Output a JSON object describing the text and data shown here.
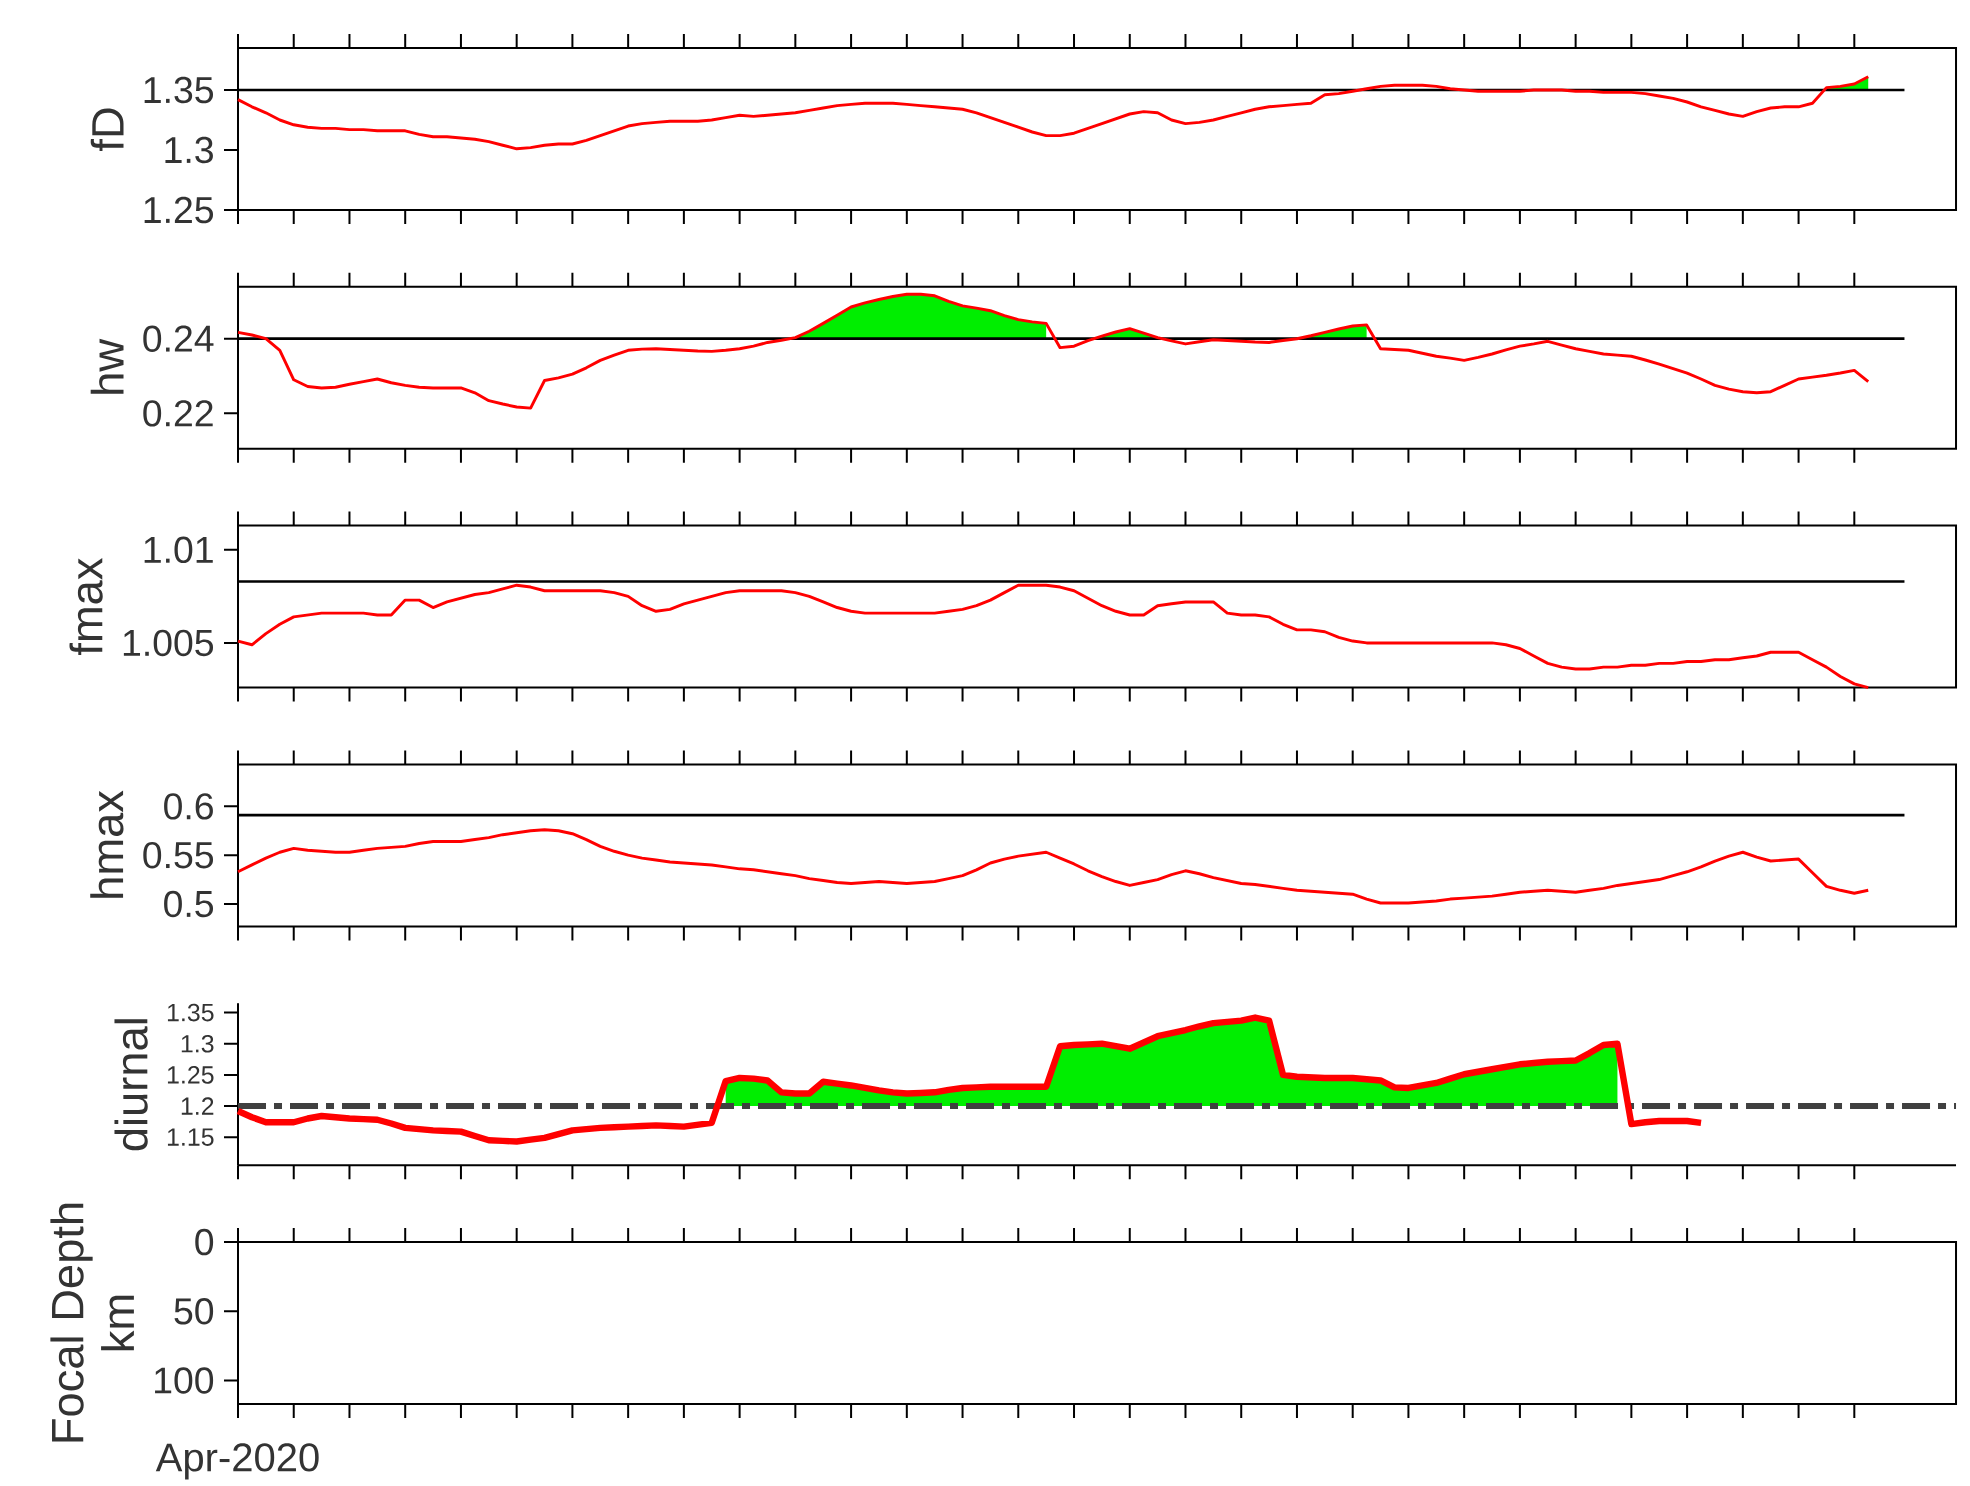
{
  "chart_data": [
    {
      "type": "line",
      "ylabel": "fD",
      "tick_labels": "y",
      "ylim": [
        1.25,
        1.385
      ],
      "yticks": [
        1.25,
        1.3,
        1.35
      ],
      "categories": [
        null,
        null,
        null,
        null,
        null,
        null,
        null,
        null,
        null,
        null,
        null,
        null,
        null,
        null,
        null,
        null,
        null,
        null,
        null,
        null,
        null,
        null,
        null,
        null,
        null,
        null,
        null,
        null,
        null,
        null,
        null,
        null,
        null,
        null,
        null,
        null,
        null,
        null,
        null,
        null,
        null,
        null,
        null,
        null,
        null,
        null,
        null,
        null,
        null,
        null,
        null,
        null,
        null,
        null,
        null,
        null,
        null,
        null,
        null,
        null,
        null,
        null,
        null,
        null,
        null,
        null,
        null,
        null,
        null,
        null,
        null,
        null,
        null,
        null,
        null,
        null,
        null,
        null,
        null,
        null,
        null,
        null,
        null,
        null,
        null,
        null,
        null,
        null,
        null,
        null,
        null,
        null,
        null,
        null,
        null,
        null,
        null,
        null,
        null,
        null,
        null,
        null,
        null,
        null,
        null,
        null,
        null,
        null,
        null,
        null,
        null,
        null,
        null,
        null,
        null,
        null,
        null,
        null,
        null,
        null
      ],
      "ref_lines": [
        {
          "axis": "y",
          "value": 1.35,
          "color": "#000000"
        }
      ],
      "series": [
        {
          "color": "#ff0000",
          "values": [
            1.342,
            1.336,
            1.331,
            1.325,
            1.321,
            1.319,
            1.318,
            1.318,
            1.317,
            1.317,
            1.316,
            1.316,
            1.316,
            1.313,
            1.311,
            1.311,
            1.31,
            1.309,
            1.307,
            1.304,
            1.301,
            1.302,
            1.304,
            1.305,
            1.305,
            1.308,
            1.312,
            1.316,
            1.32,
            1.322,
            1.323,
            1.324,
            1.324,
            1.324,
            1.325,
            1.327,
            1.329,
            1.328,
            1.329,
            1.33,
            1.331,
            1.333,
            1.335,
            1.337,
            1.338,
            1.339,
            1.339,
            1.339,
            1.338,
            1.337,
            1.336,
            1.335,
            1.334,
            1.331,
            1.327,
            1.323,
            1.319,
            1.315,
            1.312,
            1.312,
            1.314,
            1.318,
            1.322,
            1.326,
            1.33,
            1.332,
            1.331,
            1.325,
            1.322,
            1.323,
            1.325,
            1.328,
            1.331,
            1.334,
            1.336,
            1.337,
            1.338,
            1.339,
            1.346,
            1.347,
            1.349,
            1.351,
            1.353,
            1.354,
            1.354,
            1.354,
            1.353,
            1.351,
            1.35,
            1.349,
            1.349,
            1.349,
            1.349,
            1.35,
            1.35,
            1.35,
            1.349,
            1.349,
            1.348,
            1.348,
            1.348,
            1.347,
            1.345,
            1.343,
            1.34,
            1.336,
            1.333,
            1.33,
            1.328,
            1.332,
            1.335,
            1.336,
            1.336,
            1.339,
            1.352,
            1.353,
            1.355,
            1.361,
            null,
            null
          ]
        },
        {
          "type": "area",
          "color": "#00ee00",
          "values": [
            null,
            null,
            null,
            null,
            null,
            null,
            null,
            null,
            null,
            null,
            null,
            null,
            null,
            null,
            null,
            null,
            null,
            null,
            null,
            null,
            null,
            null,
            null,
            null,
            null,
            null,
            null,
            null,
            null,
            null,
            null,
            null,
            null,
            null,
            null,
            null,
            null,
            null,
            null,
            null,
            null,
            null,
            null,
            null,
            null,
            null,
            null,
            null,
            null,
            null,
            null,
            null,
            null,
            null,
            null,
            null,
            null,
            null,
            null,
            null,
            null,
            null,
            null,
            null,
            null,
            null,
            null,
            null,
            null,
            null,
            null,
            null,
            null,
            null,
            null,
            null,
            null,
            null,
            null,
            null,
            null,
            null,
            null,
            null,
            null,
            null,
            null,
            null,
            null,
            null,
            null,
            null,
            null,
            null,
            null,
            null,
            null,
            null,
            null,
            null,
            null,
            null,
            null,
            null,
            null,
            null,
            null,
            null,
            null,
            null,
            null,
            null,
            null,
            null,
            1.352,
            1.353,
            1.355,
            1.361,
            null,
            null
          ]
        }
      ]
    },
    {
      "type": "line",
      "ylabel": "hw",
      "tick_labels": "y",
      "ylim": [
        0.2105,
        0.2539
      ],
      "yticks": [
        0.22,
        0.24
      ],
      "categories": [
        null,
        null,
        null,
        null,
        null,
        null,
        null,
        null,
        null,
        null,
        null,
        null,
        null,
        null,
        null,
        null,
        null,
        null,
        null,
        null,
        null,
        null,
        null,
        null,
        null,
        null,
        null,
        null,
        null,
        null,
        null,
        null,
        null,
        null,
        null,
        null,
        null,
        null,
        null,
        null,
        null,
        null,
        null,
        null,
        null,
        null,
        null,
        null,
        null,
        null,
        null,
        null,
        null,
        null,
        null,
        null,
        null,
        null,
        null,
        null,
        null,
        null,
        null,
        null,
        null,
        null,
        null,
        null,
        null,
        null,
        null,
        null,
        null,
        null,
        null,
        null,
        null,
        null,
        null,
        null,
        null,
        null,
        null,
        null,
        null,
        null,
        null,
        null,
        null,
        null,
        null,
        null,
        null,
        null,
        null,
        null,
        null,
        null,
        null,
        null,
        null,
        null,
        null,
        null,
        null,
        null,
        null,
        null,
        null,
        null,
        null,
        null,
        null,
        null,
        null,
        null,
        null,
        null,
        null,
        null
      ],
      "ref_lines": [
        {
          "axis": "y",
          "value": 0.24,
          "color": "#000000"
        }
      ],
      "series": [
        {
          "color": "#ff0000",
          "values": [
            0.2417,
            0.241,
            0.24,
            0.2369,
            0.229,
            0.2272,
            0.2268,
            0.227,
            0.2278,
            0.2285,
            0.2292,
            0.2282,
            0.2275,
            0.227,
            0.2268,
            0.2268,
            0.2268,
            0.2255,
            0.2234,
            0.2225,
            0.2217,
            0.2214,
            0.2288,
            0.2295,
            0.2305,
            0.2322,
            0.2342,
            0.2356,
            0.2369,
            0.2372,
            0.2373,
            0.2371,
            0.2369,
            0.2367,
            0.2366,
            0.2369,
            0.2373,
            0.238,
            0.239,
            0.2396,
            0.2403,
            0.242,
            0.2441,
            0.2463,
            0.2485,
            0.2496,
            0.2505,
            0.2513,
            0.2519,
            0.2519,
            0.2515,
            0.25,
            0.2488,
            0.2482,
            0.2475,
            0.2462,
            0.2451,
            0.2445,
            0.2441,
            0.2376,
            0.238,
            0.2395,
            0.2407,
            0.2418,
            0.2427,
            0.2415,
            0.2403,
            0.2394,
            0.2386,
            0.2392,
            0.2397,
            0.2395,
            0.2393,
            0.2391,
            0.239,
            0.2395,
            0.24,
            0.2408,
            0.2417,
            0.2426,
            0.2434,
            0.2437,
            0.2373,
            0.2371,
            0.2369,
            0.2361,
            0.2353,
            0.2348,
            0.2342,
            0.235,
            0.2359,
            0.237,
            0.238,
            0.2386,
            0.2393,
            0.2383,
            0.2373,
            0.2366,
            0.2359,
            0.2356,
            0.2353,
            0.2343,
            0.2332,
            0.232,
            0.2308,
            0.2292,
            0.2275,
            0.2265,
            0.2258,
            0.2255,
            0.2258,
            0.2275,
            0.2292,
            0.2297,
            0.2302,
            0.2308,
            0.2315,
            0.2285,
            null,
            null
          ]
        },
        {
          "type": "area",
          "color": "#00ee00",
          "values": [
            null,
            null,
            null,
            null,
            null,
            null,
            null,
            null,
            null,
            null,
            null,
            null,
            null,
            null,
            null,
            null,
            null,
            null,
            null,
            null,
            null,
            null,
            null,
            null,
            null,
            null,
            null,
            null,
            null,
            null,
            null,
            null,
            null,
            null,
            null,
            null,
            null,
            null,
            null,
            null,
            0.2403,
            0.242,
            0.2441,
            0.2463,
            0.2485,
            0.2496,
            0.2505,
            0.2513,
            0.2519,
            0.2519,
            0.2515,
            0.25,
            0.2488,
            0.2482,
            0.2475,
            0.2462,
            0.2451,
            0.2445,
            0.2441,
            null,
            null,
            null,
            0.2407,
            0.2418,
            0.2427,
            0.2415,
            0.2403,
            null,
            null,
            null,
            null,
            null,
            null,
            null,
            null,
            null,
            0.24,
            0.2408,
            0.2417,
            0.2426,
            0.2434,
            0.2437,
            null,
            null,
            null,
            null,
            null,
            null,
            null,
            null,
            null,
            null,
            null,
            null,
            null,
            null,
            null,
            null,
            null,
            null,
            null,
            null,
            null,
            null,
            null,
            null,
            null,
            null,
            null,
            null,
            null,
            null,
            null,
            null,
            null,
            null,
            null,
            null,
            null,
            null
          ]
        }
      ]
    },
    {
      "type": "line",
      "ylabel": "fmax",
      "tick_labels": "y",
      "ylim": [
        1.0026,
        1.0113
      ],
      "yticks": [
        1.005,
        1.01
      ],
      "categories": [
        null,
        null,
        null,
        null,
        null,
        null,
        null,
        null,
        null,
        null,
        null,
        null,
        null,
        null,
        null,
        null,
        null,
        null,
        null,
        null,
        null,
        null,
        null,
        null,
        null,
        null,
        null,
        null,
        null,
        null,
        null,
        null,
        null,
        null,
        null,
        null,
        null,
        null,
        null,
        null,
        null,
        null,
        null,
        null,
        null,
        null,
        null,
        null,
        null,
        null,
        null,
        null,
        null,
        null,
        null,
        null,
        null,
        null,
        null,
        null,
        null,
        null,
        null,
        null,
        null,
        null,
        null,
        null,
        null,
        null,
        null,
        null,
        null,
        null,
        null,
        null,
        null,
        null,
        null,
        null,
        null,
        null,
        null,
        null,
        null,
        null,
        null,
        null,
        null,
        null,
        null,
        null,
        null,
        null,
        null,
        null,
        null,
        null,
        null,
        null,
        null,
        null,
        null,
        null,
        null,
        null,
        null,
        null,
        null,
        null,
        null,
        null,
        null,
        null,
        null,
        null,
        null,
        null,
        null,
        null
      ],
      "ref_lines": [
        {
          "axis": "y",
          "value": 1.0083,
          "color": "#000000"
        }
      ],
      "series": [
        {
          "color": "#ff0000",
          "values": [
            1.0051,
            1.0049,
            1.0055,
            1.006,
            1.0064,
            1.0065,
            1.0066,
            1.0066,
            1.0066,
            1.0066,
            1.0065,
            1.0065,
            1.0073,
            1.0073,
            1.0069,
            1.0072,
            1.0074,
            1.0076,
            1.0077,
            1.0079,
            1.0081,
            1.008,
            1.0078,
            1.0078,
            1.0078,
            1.0078,
            1.0078,
            1.0077,
            1.0075,
            1.007,
            1.0067,
            1.0068,
            1.0071,
            1.0073,
            1.0075,
            1.0077,
            1.0078,
            1.0078,
            1.0078,
            1.0078,
            1.0077,
            1.0075,
            1.0072,
            1.0069,
            1.0067,
            1.0066,
            1.0066,
            1.0066,
            1.0066,
            1.0066,
            1.0066,
            1.0067,
            1.0068,
            1.007,
            1.0073,
            1.0077,
            1.0081,
            1.0081,
            1.0081,
            1.008,
            1.0078,
            1.0074,
            1.007,
            1.0067,
            1.0065,
            1.0065,
            1.007,
            1.0071,
            1.0072,
            1.0072,
            1.0072,
            1.0066,
            1.0065,
            1.0065,
            1.0064,
            1.006,
            1.0057,
            1.0057,
            1.0056,
            1.0053,
            1.0051,
            1.005,
            1.005,
            1.005,
            1.005,
            1.005,
            1.005,
            1.005,
            1.005,
            1.005,
            1.005,
            1.0049,
            1.0047,
            1.0043,
            1.0039,
            1.0037,
            1.0036,
            1.0036,
            1.0037,
            1.0037,
            1.0038,
            1.0038,
            1.0039,
            1.0039,
            1.004,
            1.004,
            1.0041,
            1.0041,
            1.0042,
            1.0043,
            1.0045,
            1.0045,
            1.0045,
            1.0041,
            1.0037,
            1.0032,
            1.0028,
            1.0026,
            null,
            null
          ]
        }
      ]
    },
    {
      "type": "line",
      "ylabel": "hmax",
      "tick_labels": "y",
      "ylim": [
        0.477,
        0.643
      ],
      "yticks": [
        0.5,
        0.55,
        0.6
      ],
      "categories": [
        null,
        null,
        null,
        null,
        null,
        null,
        null,
        null,
        null,
        null,
        null,
        null,
        null,
        null,
        null,
        null,
        null,
        null,
        null,
        null,
        null,
        null,
        null,
        null,
        null,
        null,
        null,
        null,
        null,
        null,
        null,
        null,
        null,
        null,
        null,
        null,
        null,
        null,
        null,
        null,
        null,
        null,
        null,
        null,
        null,
        null,
        null,
        null,
        null,
        null,
        null,
        null,
        null,
        null,
        null,
        null,
        null,
        null,
        null,
        null,
        null,
        null,
        null,
        null,
        null,
        null,
        null,
        null,
        null,
        null,
        null,
        null,
        null,
        null,
        null,
        null,
        null,
        null,
        null,
        null,
        null,
        null,
        null,
        null,
        null,
        null,
        null,
        null,
        null,
        null,
        null,
        null,
        null,
        null,
        null,
        null,
        null,
        null,
        null,
        null,
        null,
        null,
        null,
        null,
        null,
        null,
        null,
        null,
        null,
        null,
        null,
        null,
        null,
        null,
        null,
        null,
        null,
        null,
        null,
        null
      ],
      "ref_lines": [
        {
          "axis": "y",
          "value": 0.591,
          "color": "#000000"
        }
      ],
      "series": [
        {
          "color": "#ff0000",
          "values": [
            0.533,
            0.54,
            0.547,
            0.553,
            0.557,
            0.555,
            0.554,
            0.553,
            0.553,
            0.555,
            0.557,
            0.558,
            0.559,
            0.562,
            0.564,
            0.564,
            0.564,
            0.566,
            0.568,
            0.571,
            0.573,
            0.575,
            0.576,
            0.575,
            0.572,
            0.566,
            0.559,
            0.554,
            0.55,
            0.547,
            0.545,
            0.543,
            0.542,
            0.541,
            0.54,
            0.538,
            0.536,
            0.535,
            0.533,
            0.531,
            0.529,
            0.526,
            0.524,
            0.522,
            0.521,
            0.522,
            0.523,
            0.522,
            0.521,
            0.522,
            0.523,
            0.526,
            0.529,
            0.535,
            0.542,
            0.546,
            0.549,
            0.551,
            0.553,
            0.547,
            0.541,
            0.534,
            0.528,
            0.523,
            0.519,
            0.522,
            0.525,
            0.53,
            0.534,
            0.531,
            0.527,
            0.524,
            0.521,
            0.52,
            0.518,
            0.516,
            0.514,
            0.513,
            0.512,
            0.511,
            0.51,
            0.505,
            0.501,
            0.501,
            0.501,
            0.502,
            0.503,
            0.505,
            0.506,
            0.507,
            0.508,
            0.51,
            0.512,
            0.513,
            0.514,
            0.513,
            0.512,
            0.514,
            0.516,
            0.519,
            0.521,
            0.523,
            0.525,
            0.529,
            0.533,
            0.538,
            0.544,
            0.549,
            0.553,
            0.548,
            0.544,
            0.545,
            0.546,
            0.532,
            0.518,
            0.514,
            0.511,
            0.514,
            null,
            null
          ]
        }
      ]
    },
    {
      "type": "line",
      "ylabel": "diurnal",
      "tick_labels": "y",
      "ylim": [
        1.105,
        1.365
      ],
      "yticks": [
        1.15,
        1.2,
        1.25,
        1.3,
        1.35
      ],
      "categories": [
        null,
        null,
        null,
        null,
        null,
        null,
        null,
        null,
        null,
        null,
        null,
        null,
        null,
        null,
        null,
        null,
        null,
        null,
        null,
        null,
        null,
        null,
        null,
        null,
        null,
        null,
        null,
        null,
        null,
        null,
        null,
        null,
        null,
        null,
        null,
        null,
        null,
        null,
        null,
        null,
        null,
        null,
        null,
        null,
        null,
        null,
        null,
        null,
        null,
        null,
        null,
        null,
        null,
        null,
        null,
        null,
        null,
        null,
        null,
        null,
        null,
        null,
        null,
        null,
        null,
        null,
        null,
        null,
        null,
        null,
        null,
        null,
        null,
        null,
        null,
        null,
        null,
        null,
        null,
        null,
        null,
        null,
        null,
        null,
        null,
        null,
        null,
        null,
        null,
        null,
        null,
        null,
        null,
        null,
        null,
        null,
        null,
        null,
        null,
        null,
        null,
        null,
        null,
        null,
        null,
        null,
        null,
        null,
        null,
        null,
        null,
        null,
        null,
        null,
        null,
        null,
        null,
        null,
        null,
        null
      ],
      "ref_lines": [
        {
          "axis": "y",
          "value": 1.2,
          "line_style": "dashdot",
          "color": "#404040"
        }
      ],
      "series": [
        {
          "color": "#ff0000",
          "values": [
            1.192,
            1.182,
            1.174,
            1.174,
            1.174,
            1.18,
            1.184,
            1.182,
            1.18,
            1.179,
            1.178,
            1.172,
            1.165,
            1.163,
            1.161,
            1.16,
            1.159,
            1.152,
            1.145,
            1.144,
            1.143,
            1.146,
            1.149,
            1.155,
            1.161,
            1.163,
            1.165,
            1.166,
            1.167,
            1.168,
            1.169,
            1.168,
            1.167,
            1.17,
            1.173,
            1.24,
            1.245,
            1.244,
            1.241,
            1.222,
            1.22,
            1.22,
            1.239,
            1.236,
            1.233,
            1.229,
            1.225,
            1.222,
            1.22,
            1.221,
            1.222,
            1.226,
            1.229,
            1.23,
            1.231,
            1.231,
            1.231,
            1.231,
            1.231,
            1.296,
            1.298,
            1.299,
            1.3,
            1.296,
            1.292,
            1.302,
            1.312,
            1.317,
            1.322,
            1.328,
            1.333,
            1.335,
            1.337,
            1.342,
            1.337,
            1.25,
            1.247,
            1.246,
            1.245,
            1.245,
            1.245,
            1.243,
            1.241,
            1.23,
            1.229,
            1.233,
            1.237,
            1.244,
            1.251,
            1.255,
            1.259,
            1.263,
            1.267,
            1.269,
            1.271,
            1.272,
            1.273,
            1.285,
            1.298,
            1.3,
            1.171,
            1.174,
            1.176,
            1.176,
            1.176,
            1.173,
            null,
            null,
            null,
            null,
            null,
            null,
            null,
            null,
            null,
            null,
            null,
            null,
            null,
            null
          ]
        },
        {
          "type": "area",
          "color": "#00ee00",
          "values": [
            null,
            null,
            null,
            null,
            null,
            null,
            null,
            null,
            null,
            null,
            null,
            null,
            null,
            null,
            null,
            null,
            null,
            null,
            null,
            null,
            null,
            null,
            null,
            null,
            null,
            null,
            null,
            null,
            null,
            null,
            null,
            null,
            null,
            null,
            null,
            1.24,
            1.245,
            1.244,
            1.241,
            1.222,
            1.22,
            1.22,
            1.239,
            1.236,
            1.233,
            1.229,
            1.225,
            1.222,
            1.22,
            1.221,
            1.222,
            1.226,
            1.229,
            1.23,
            1.231,
            1.231,
            1.231,
            1.231,
            1.231,
            1.296,
            1.298,
            1.299,
            1.3,
            1.296,
            1.292,
            1.302,
            1.312,
            1.317,
            1.322,
            1.328,
            1.333,
            1.335,
            1.337,
            1.342,
            1.337,
            1.25,
            1.247,
            1.246,
            1.245,
            1.245,
            1.245,
            1.243,
            1.241,
            1.23,
            1.229,
            1.233,
            1.237,
            1.244,
            1.251,
            1.255,
            1.259,
            1.263,
            1.267,
            1.269,
            1.271,
            1.272,
            1.273,
            1.285,
            1.298,
            1.3,
            null,
            null,
            null,
            null,
            null,
            null,
            null,
            null,
            null,
            null,
            null,
            null,
            null,
            null,
            null,
            null,
            null,
            null,
            null,
            null
          ]
        }
      ]
    },
    {
      "type": "scatter",
      "ylabel": "Focal Depth km",
      "tick_labels": "y",
      "ylim": [
        117,
        0
      ],
      "yticks": [
        0,
        50,
        100
      ],
      "categories": [
        null,
        null,
        null,
        null,
        null,
        null,
        null,
        null,
        null,
        null,
        null,
        null,
        null,
        null,
        null,
        null,
        null,
        null,
        null,
        null,
        null,
        null,
        null,
        null,
        null,
        null,
        null,
        null,
        null,
        null,
        null,
        null,
        null,
        null,
        null,
        null,
        null,
        null,
        null,
        null,
        null,
        null,
        null,
        null,
        null,
        null,
        null,
        null,
        null,
        null,
        null,
        null,
        null,
        null,
        null,
        null,
        null,
        null,
        null,
        null,
        null,
        null,
        null,
        null,
        null,
        null,
        null,
        null,
        null,
        null,
        null,
        null,
        null,
        null,
        null,
        null,
        null,
        null,
        null,
        null,
        null,
        null,
        null,
        null,
        null,
        null,
        null,
        null,
        null,
        null,
        null,
        null,
        null,
        null,
        null,
        null,
        null,
        null,
        null,
        null,
        null,
        null,
        null,
        null,
        null,
        null,
        null,
        null,
        null,
        null,
        null,
        null,
        null,
        null,
        null,
        null,
        null,
        null,
        null,
        null
      ],
      "annotations": [
        "Apr-2020"
      ]
    }
  ]
}
